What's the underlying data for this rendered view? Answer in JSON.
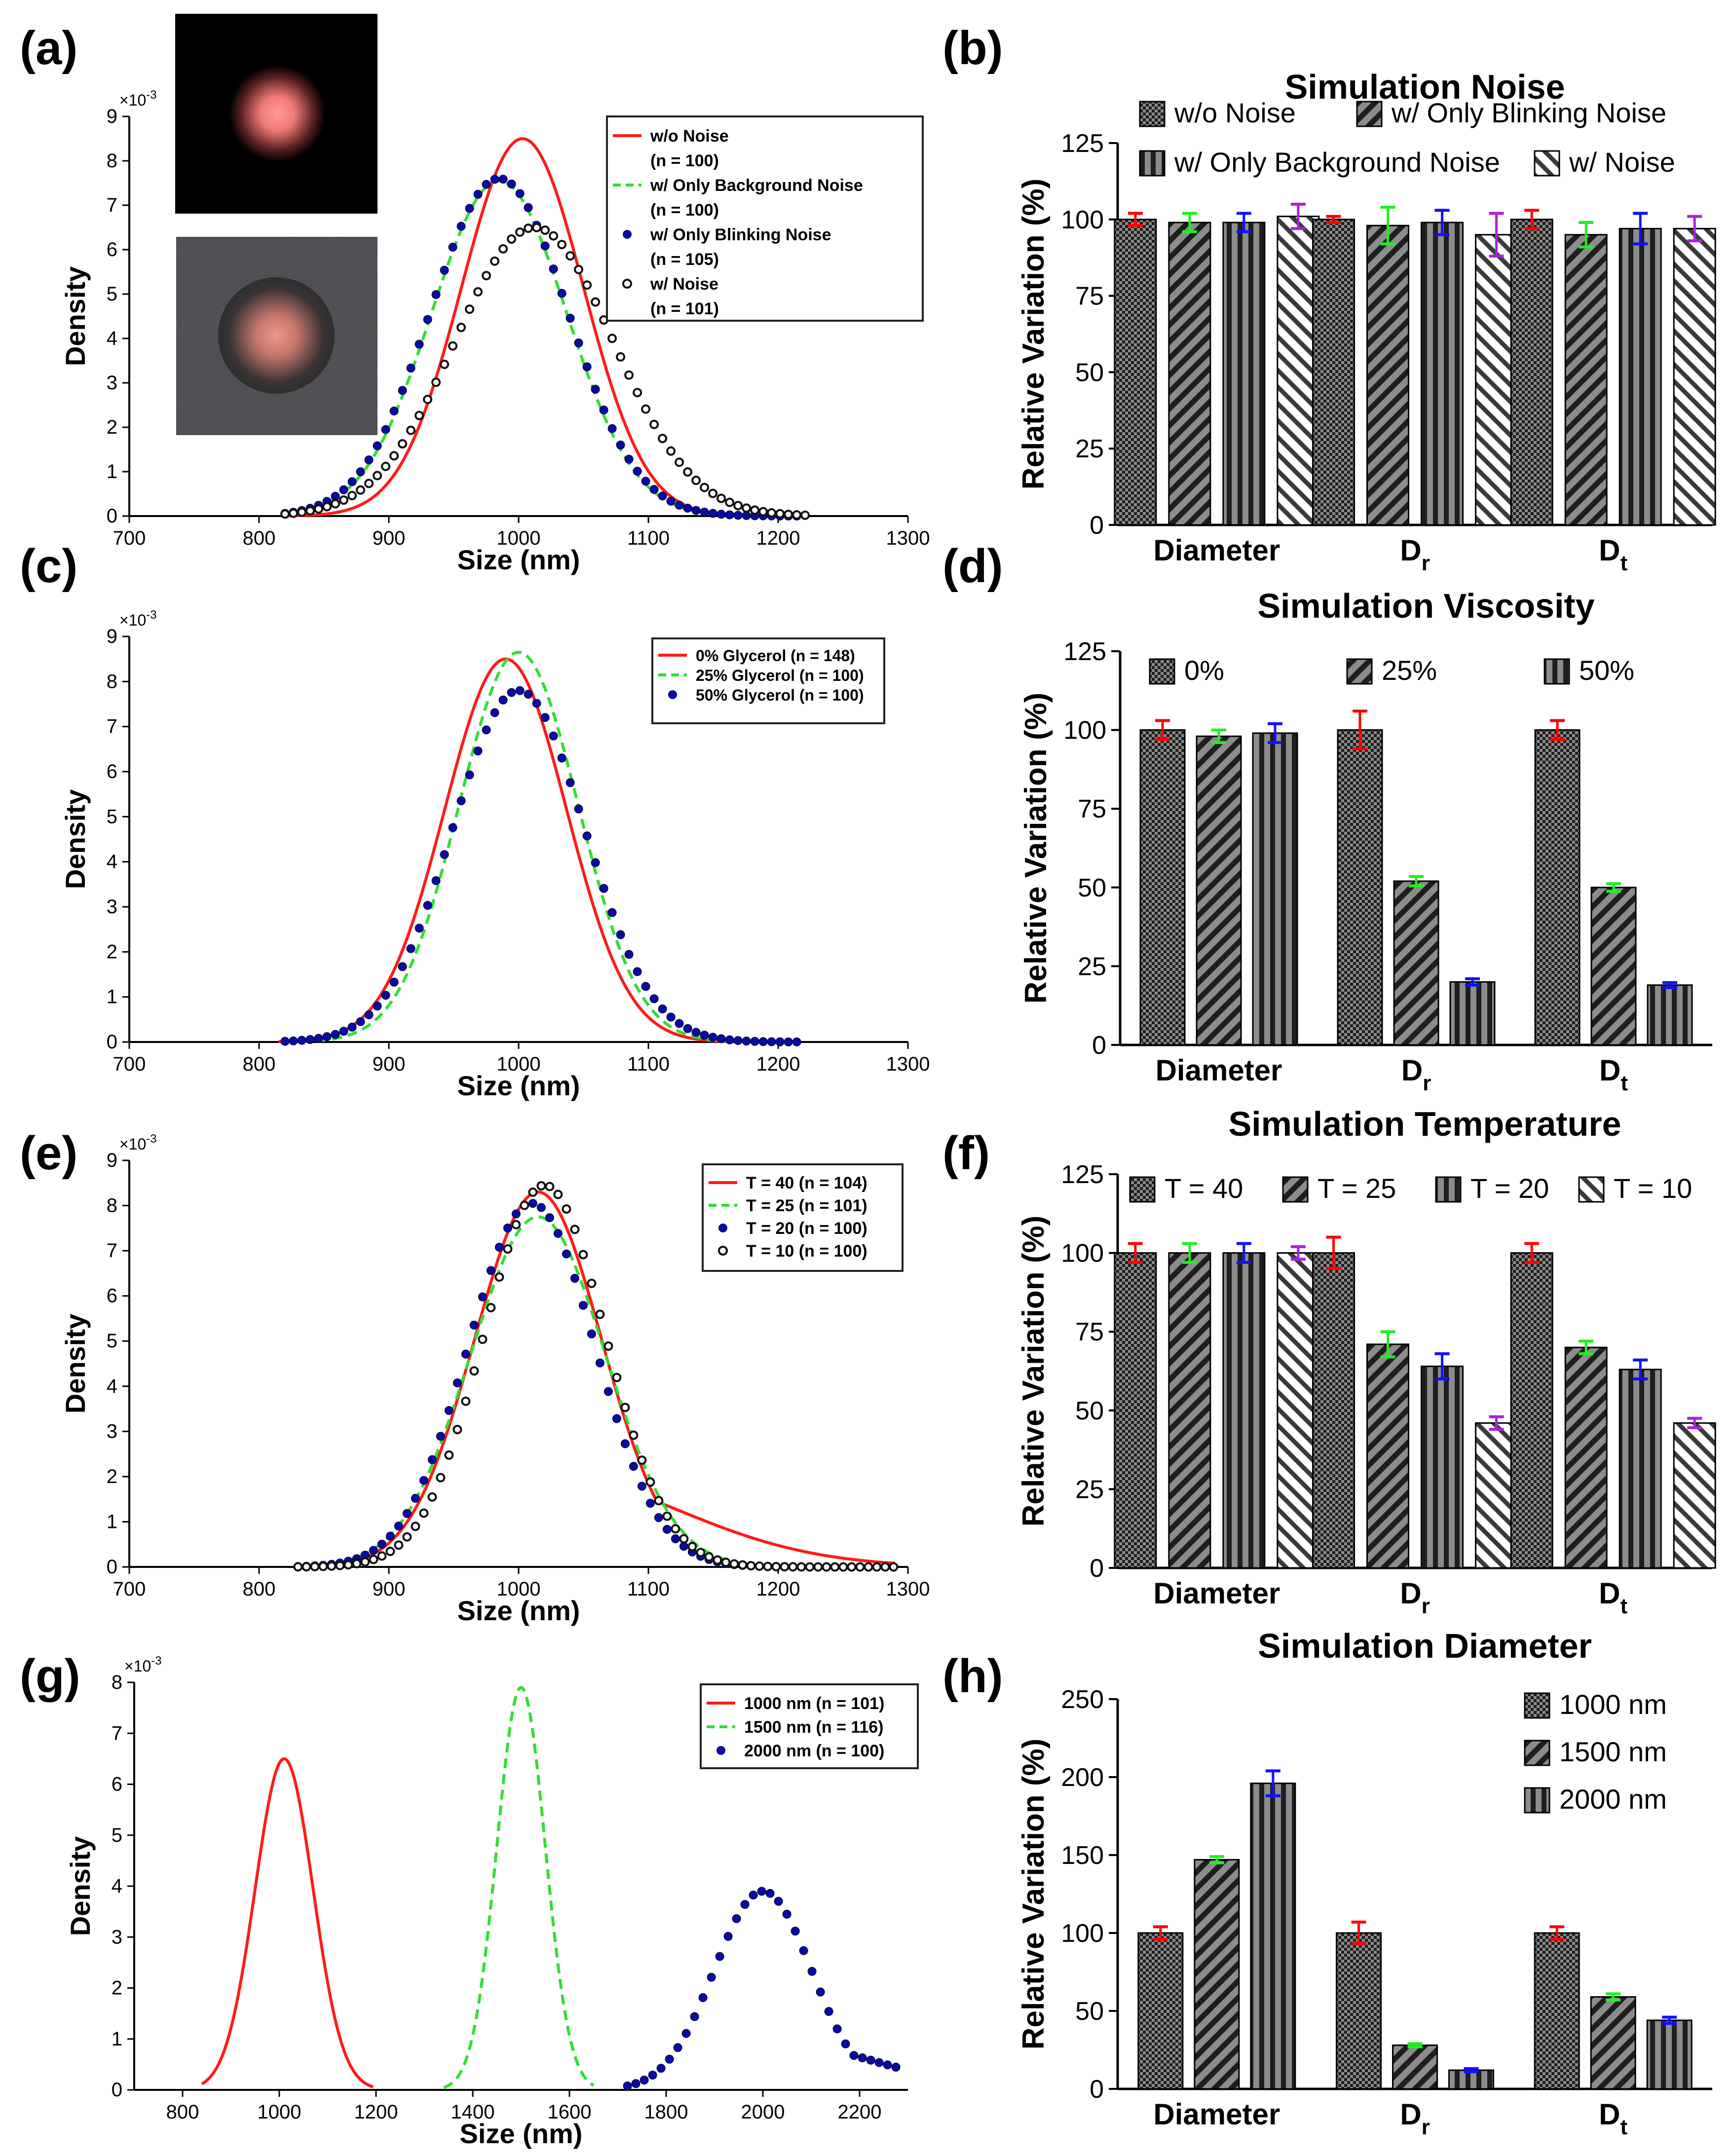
{
  "chart_data": [
    {
      "panel": "(a)",
      "type": "line",
      "xlabel": "Size (nm)",
      "ylabel": "Density",
      "y_multiplier": "×10-3",
      "xlim": [
        700,
        1300
      ],
      "ylim": [
        0,
        9
      ],
      "xticks": [
        700,
        800,
        900,
        1000,
        1100,
        1200,
        1300
      ],
      "yticks": [
        0,
        1,
        2,
        3,
        4,
        5,
        6,
        7,
        8,
        9
      ],
      "legend_position": "top-right",
      "series": [
        {
          "name": "w/o Noise",
          "n_label": "(n = 100)",
          "color": "#ff1a1a",
          "style": "solid",
          "mean": 1003,
          "sd": 47,
          "peak": 8.5,
          "x_range": [
            820,
            1200
          ]
        },
        {
          "name": "w/ Only Background Noise",
          "n_label": "(n = 100)",
          "color": "#33dd33",
          "style": "dashed",
          "mean": 985,
          "sd": 52,
          "peak": 7.55,
          "x_range": [
            820,
            1210
          ]
        },
        {
          "name": "w/ Only Blinking Noise",
          "n_label": "(n = 105)",
          "color": "#0a0aa0",
          "style": "filled-dots",
          "mean": 985,
          "sd": 53,
          "peak": 7.6,
          "x_range": [
            820,
            1215
          ]
        },
        {
          "name": "w/ Noise",
          "n_label": "(n = 101)",
          "color": "#111111",
          "style": "open-circles",
          "mean": 1012,
          "sd": 61,
          "peak": 6.5,
          "x_range": [
            820,
            1225
          ]
        }
      ]
    },
    {
      "panel": "(b)",
      "type": "bar",
      "title": "Simulation Noise",
      "ylabel": "Relative Variation (%)",
      "ylim": [
        0,
        125
      ],
      "yticks": [
        0,
        25,
        50,
        75,
        100,
        125
      ],
      "categories": [
        "Diameter",
        "Dr",
        "Dt"
      ],
      "category_labels": [
        {
          "main": "Diameter",
          "sub": ""
        },
        {
          "main": "D",
          "sub": "r"
        },
        {
          "main": "D",
          "sub": "t"
        }
      ],
      "series": [
        {
          "name": "w/o Noise",
          "pattern": "checker",
          "err_color": "#ff0000",
          "values": [
            100,
            100,
            100
          ],
          "errors": [
            2,
            1,
            3
          ]
        },
        {
          "name": "w/ Only Blinking Noise",
          "pattern": "diag",
          "err_color": "#22ee22",
          "values": [
            99,
            98,
            95
          ],
          "errors": [
            3,
            6,
            4
          ]
        },
        {
          "name": "w/ Only Background Noise",
          "pattern": "vert",
          "err_color": "#1010ff",
          "values": [
            99,
            99,
            97
          ],
          "errors": [
            3,
            4,
            5
          ]
        },
        {
          "name": "w/ Noise",
          "pattern": "diaglight",
          "err_color": "#aa22dd",
          "values": [
            101,
            95,
            97
          ],
          "errors": [
            4,
            7,
            4
          ]
        }
      ]
    },
    {
      "panel": "(c)",
      "type": "line",
      "xlabel": "Size (nm)",
      "ylabel": "Density",
      "y_multiplier": "×10-3",
      "xlim": [
        700,
        1300
      ],
      "ylim": [
        0,
        9
      ],
      "xticks": [
        700,
        800,
        900,
        1000,
        1100,
        1200,
        1300
      ],
      "yticks": [
        0,
        1,
        2,
        3,
        4,
        5,
        6,
        7,
        8,
        9
      ],
      "legend_position": "top-right",
      "series": [
        {
          "name": "0%  Glycerol  (n = 148)",
          "color": "#ff1a1a",
          "style": "solid",
          "mean": 990,
          "sd": 47,
          "peak": 8.5,
          "x_range": [
            815,
            1165
          ]
        },
        {
          "name": "25% Glycerol (n = 100)",
          "color": "#33dd33",
          "style": "dashed",
          "mean": 1000,
          "sd": 46,
          "peak": 8.65,
          "x_range": [
            820,
            1175
          ]
        },
        {
          "name": "50% Glycerol (n = 100)",
          "color": "#0a0aa0",
          "style": "filled-dots",
          "mean": 1000,
          "sd": 51,
          "peak": 7.8,
          "x_range": [
            820,
            1220
          ]
        }
      ]
    },
    {
      "panel": "(d)",
      "type": "bar",
      "title": "Simulation Viscosity",
      "ylabel": "Relative Variation (%)",
      "ylim": [
        0,
        125
      ],
      "yticks": [
        0,
        25,
        50,
        75,
        100,
        125
      ],
      "categories": [
        "Diameter",
        "Dr",
        "Dt"
      ],
      "category_labels": [
        {
          "main": "Diameter",
          "sub": ""
        },
        {
          "main": "D",
          "sub": "r"
        },
        {
          "main": "D",
          "sub": "t"
        }
      ],
      "series": [
        {
          "name": "0%",
          "pattern": "checker",
          "err_color": "#ff0000",
          "values": [
            100,
            100,
            100
          ],
          "errors": [
            3,
            6,
            3
          ]
        },
        {
          "name": "25%",
          "pattern": "diag",
          "err_color": "#22ee22",
          "values": [
            98,
            52,
            50
          ],
          "errors": [
            2,
            1.5,
            1.2
          ]
        },
        {
          "name": "50%",
          "pattern": "vert",
          "err_color": "#1010ff",
          "values": [
            99,
            20,
            19
          ],
          "errors": [
            3,
            1,
            0.8
          ]
        }
      ]
    },
    {
      "panel": "(e)",
      "type": "line",
      "xlabel": "Size (nm)",
      "ylabel": "Density",
      "y_multiplier": "×10-3",
      "xlim": [
        700,
        1300
      ],
      "ylim": [
        0,
        9
      ],
      "xticks": [
        700,
        800,
        900,
        1000,
        1100,
        1200,
        1300
      ],
      "yticks": [
        0,
        1,
        2,
        3,
        4,
        5,
        6,
        7,
        8,
        9
      ],
      "legend_position": "top-right",
      "series": [
        {
          "name": "T = 40 (n = 104)",
          "color": "#ff1a1a",
          "style": "solid",
          "mean": 1015,
          "sd": 49,
          "peak": 8.3,
          "tail": 0.25,
          "x_range": [
            830,
            1290
          ]
        },
        {
          "name": "T = 25 (n = 101)",
          "color": "#33dd33",
          "style": "dashed",
          "mean": 1015,
          "sd": 52,
          "peak": 7.75,
          "x_range": [
            830,
            1280
          ]
        },
        {
          "name": "T = 20 (n = 100)",
          "color": "#0a0aa0",
          "style": "filled-dots",
          "mean": 1010,
          "sd": 49,
          "peak": 8.05,
          "x_range": [
            830,
            1290
          ]
        },
        {
          "name": "T = 10 (n = 100)",
          "color": "#111111",
          "style": "open-circles",
          "mean": 1020,
          "sd": 47,
          "peak": 8.45,
          "x_range": [
            830,
            1295
          ]
        }
      ]
    },
    {
      "panel": "(f)",
      "type": "bar",
      "title": "Simulation Temperature",
      "ylabel": "Relative Variation (%)",
      "ylim": [
        0,
        125
      ],
      "yticks": [
        0,
        25,
        50,
        75,
        100,
        125
      ],
      "categories": [
        "Diameter",
        "Dr",
        "Dt"
      ],
      "category_labels": [
        {
          "main": "Diameter",
          "sub": ""
        },
        {
          "main": "D",
          "sub": "r"
        },
        {
          "main": "D",
          "sub": "t"
        }
      ],
      "series": [
        {
          "name": "T = 40",
          "pattern": "checker",
          "err_color": "#ff0000",
          "values": [
            100,
            100,
            100
          ],
          "errors": [
            3,
            5,
            3
          ]
        },
        {
          "name": "T = 25",
          "pattern": "diag",
          "err_color": "#22ee22",
          "values": [
            100,
            71,
            70
          ],
          "errors": [
            3,
            4,
            2
          ]
        },
        {
          "name": "T = 20",
          "pattern": "vert",
          "err_color": "#1010ff",
          "values": [
            100,
            64,
            63
          ],
          "errors": [
            3,
            4,
            3
          ]
        },
        {
          "name": "T = 10",
          "pattern": "diaglight",
          "err_color": "#aa22dd",
          "values": [
            100,
            46,
            46
          ],
          "errors": [
            2,
            2,
            1.5
          ]
        }
      ]
    },
    {
      "panel": "(g)",
      "type": "line",
      "xlabel": "Size (nm)",
      "ylabel": "Density",
      "y_multiplier": "×10-3",
      "xlim": [
        700,
        2300
      ],
      "ylim": [
        0,
        8
      ],
      "xticks": [
        800,
        1000,
        1200,
        1400,
        1600,
        1800,
        2000,
        2200
      ],
      "yticks": [
        0,
        1,
        2,
        3,
        4,
        5,
        6,
        7,
        8
      ],
      "legend_position": "top-right",
      "series": [
        {
          "name": "1000 nm (n = 101)",
          "color": "#ff1a1a",
          "style": "solid",
          "mean": 1010,
          "sd": 60,
          "peak": 6.5,
          "x_range": [
            840,
            1195
          ]
        },
        {
          "name": "1500 nm (n = 116)",
          "color": "#33dd33",
          "style": "dashed",
          "mean": 1500,
          "sd": 50,
          "peak": 7.9,
          "x_range": [
            1340,
            1650
          ]
        },
        {
          "name": "2000 nm (n = 100)",
          "color": "#0a0aa0",
          "style": "filled-dots",
          "mean": 2000,
          "sd": 100,
          "peak": 3.9,
          "tail": 0.25,
          "x_range": [
            1720,
            2290
          ]
        }
      ]
    },
    {
      "panel": "(h)",
      "type": "bar",
      "title": "Simulation Diameter",
      "ylabel": "Relative Variation (%)",
      "ylim": [
        0,
        250
      ],
      "yticks": [
        0,
        50,
        100,
        150,
        200,
        250
      ],
      "categories": [
        "Diameter",
        "Dr",
        "Dt"
      ],
      "category_labels": [
        {
          "main": "Diameter",
          "sub": ""
        },
        {
          "main": "D",
          "sub": "r"
        },
        {
          "main": "D",
          "sub": "t"
        }
      ],
      "series": [
        {
          "name": "1000 nm",
          "pattern": "checker",
          "err_color": "#ff0000",
          "values": [
            100,
            100,
            100
          ],
          "errors": [
            4,
            7,
            4
          ]
        },
        {
          "name": "1500 nm",
          "pattern": "diag",
          "err_color": "#22ee22",
          "values": [
            147,
            28,
            59
          ],
          "errors": [
            2,
            1,
            2
          ]
        },
        {
          "name": "2000 nm",
          "pattern": "vert",
          "err_color": "#1010ff",
          "values": [
            196,
            12,
            44
          ],
          "errors": [
            8,
            1,
            2
          ]
        }
      ]
    }
  ]
}
